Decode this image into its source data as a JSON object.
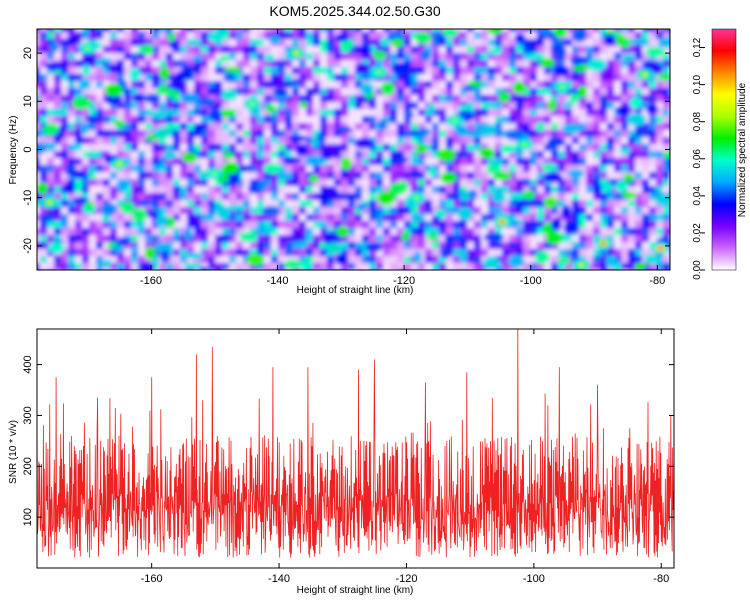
{
  "figure_title": "KOM5.2025.344.02.50.G30",
  "chart_data": [
    {
      "type": "heatmap",
      "title": "KOM5.2025.344.02.50.G30",
      "xlabel": "Height of straight line (km)",
      "ylabel": "Frequency (Hz)",
      "xlim": [
        -178,
        -78
      ],
      "ylim": [
        -25,
        25
      ],
      "xticks": [
        -160,
        -140,
        -120,
        -100,
        -80
      ],
      "yticks": [
        -20,
        -10,
        0,
        10,
        20
      ],
      "colorbar": {
        "label": "Normalized spectral amplitude",
        "range": [
          0.0,
          0.13
        ],
        "ticks": [
          "0.00",
          "0.02",
          "0.04",
          "0.06",
          "0.08",
          "0.10",
          "0.12"
        ],
        "colors": [
          "#ffffff",
          "#cc66ff",
          "#7700ff",
          "#0000ff",
          "#00aaff",
          "#00ffcc",
          "#00ee00",
          "#aaff00",
          "#ffff00",
          "#ff8800",
          "#ff0000",
          "#ff3399"
        ]
      },
      "description_values": {
        "typical_amplitude": [
          0.01,
          0.04
        ],
        "peak_amplitude": 0.12,
        "hotspots": [
          {
            "x": -79.5,
            "y": -20.5,
            "v": 0.12
          },
          {
            "x": -88.5,
            "y": -19.5,
            "v": 0.11
          },
          {
            "x": -104.5,
            "y": -15.0,
            "v": 0.11
          },
          {
            "x": -165.0,
            "y": -3.0,
            "v": 0.09
          },
          {
            "x": -137.0,
            "y": 20.0,
            "v": 0.09
          },
          {
            "x": -124.0,
            "y": 16.0,
            "v": 0.08
          },
          {
            "x": -176.0,
            "y": -11.0,
            "v": 0.09
          },
          {
            "x": -144.0,
            "y": 9.5,
            "v": 0.08
          },
          {
            "x": -112.0,
            "y": 6.0,
            "v": 0.08
          },
          {
            "x": -95.0,
            "y": 13.0,
            "v": 0.08
          },
          {
            "x": -82.0,
            "y": 15.5,
            "v": 0.09
          },
          {
            "x": -150.0,
            "y": -5.0,
            "v": 0.08
          },
          {
            "x": -170.0,
            "y": 21.0,
            "v": 0.08
          },
          {
            "x": -118.0,
            "y": -10.0,
            "v": 0.08
          },
          {
            "x": -131.0,
            "y": -20.5,
            "v": 0.07
          },
          {
            "x": -92.0,
            "y": -24.0,
            "v": 0.09
          },
          {
            "x": -158.0,
            "y": 3.5,
            "v": 0.07
          },
          {
            "x": -101.0,
            "y": 1.0,
            "v": 0.08
          }
        ]
      }
    },
    {
      "type": "line",
      "xlabel": "Height of straight line (km)",
      "ylabel": "SNR (10 * v/v)",
      "xlim": [
        -178,
        -78
      ],
      "ylim": [
        0,
        470
      ],
      "xticks": [
        -160,
        -140,
        -120,
        -100,
        -80
      ],
      "yticks": [
        100,
        200,
        300,
        400
      ],
      "line_color": "#ee2222",
      "series": [
        {
          "name": "SNR",
          "baseline_range": [
            60,
            260
          ],
          "mean": 140,
          "peaks": [
            {
              "x": -102.5,
              "y": 470
            },
            {
              "x": -150.5,
              "y": 435
            },
            {
              "x": -153.0,
              "y": 420
            },
            {
              "x": -175.0,
              "y": 375
            },
            {
              "x": -141.0,
              "y": 395
            },
            {
              "x": -125.0,
              "y": 410
            },
            {
              "x": -135.5,
              "y": 395
            },
            {
              "x": -127.5,
              "y": 390
            },
            {
              "x": -110.5,
              "y": 385
            },
            {
              "x": -96.0,
              "y": 395
            },
            {
              "x": -160.0,
              "y": 375
            },
            {
              "x": -168.5,
              "y": 335
            },
            {
              "x": -90.0,
              "y": 360
            },
            {
              "x": -117.0,
              "y": 365
            },
            {
              "x": -178.0,
              "y": 290
            },
            {
              "x": -78.5,
              "y": 300
            }
          ]
        }
      ]
    }
  ]
}
